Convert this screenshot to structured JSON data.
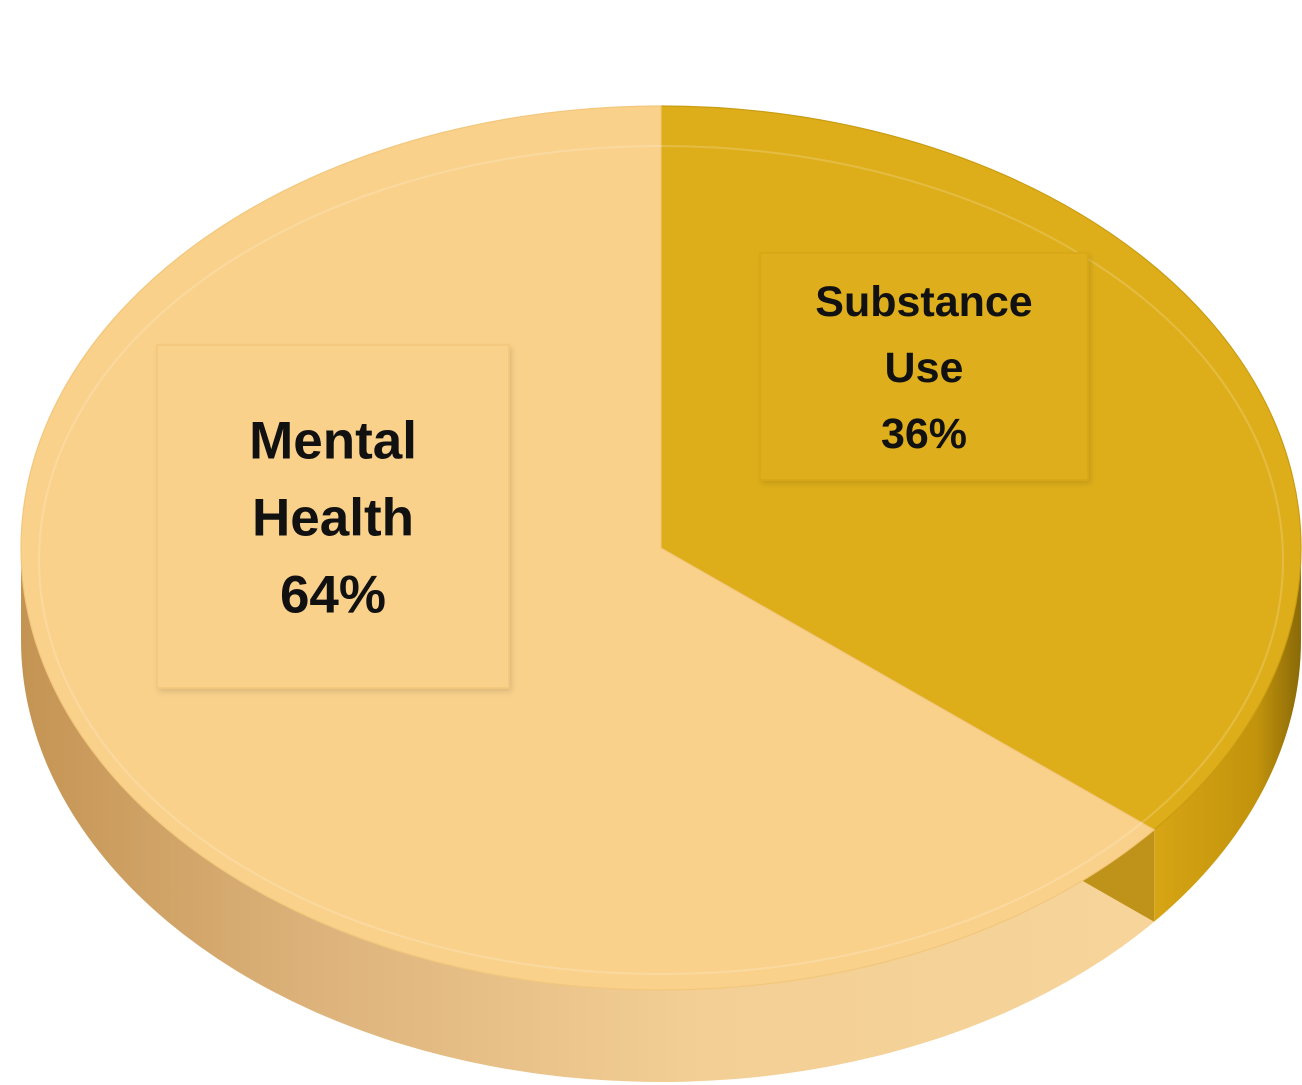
{
  "chart_data": {
    "type": "pie",
    "style": "3d",
    "slices": [
      {
        "name": "Substance Use",
        "label_lines": [
          "Substance",
          "Use"
        ],
        "value": 36,
        "percent_label": "36%",
        "color": "#deae1a",
        "side_color": "#b98c0c"
      },
      {
        "name": "Mental Health",
        "label_lines": [
          "Mental",
          "Health"
        ],
        "value": 64,
        "percent_label": "64%",
        "color": "#f9d18b",
        "side_color": "#d9ab6a"
      }
    ],
    "start_angle": "top, clockwise",
    "legend": "none"
  }
}
